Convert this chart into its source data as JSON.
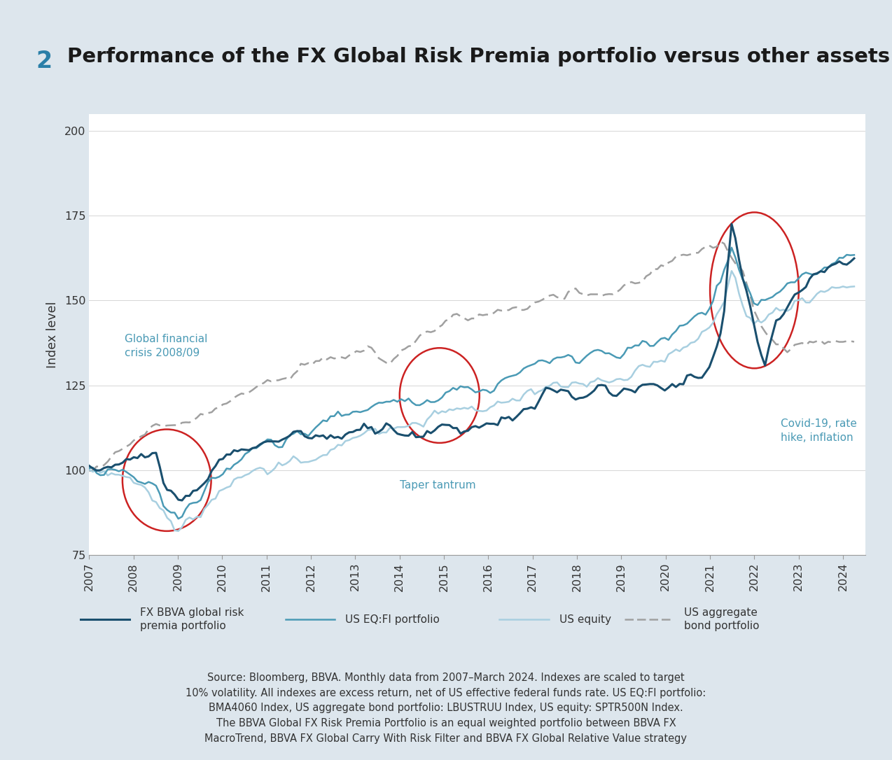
{
  "title_number": "2",
  "title_text": "Performance of the FX Global Risk Premia portfolio versus other assets",
  "title_number_color": "#2a7fa8",
  "title_text_color": "#1a1a1a",
  "ylabel": "Index level",
  "ylim": [
    75,
    205
  ],
  "yticks": [
    75,
    100,
    125,
    150,
    175,
    200
  ],
  "xlim": [
    2007,
    2024.5
  ],
  "xticks": [
    2007,
    2008,
    2009,
    2010,
    2011,
    2012,
    2013,
    2014,
    2015,
    2016,
    2017,
    2018,
    2019,
    2020,
    2021,
    2022,
    2023,
    2024
  ],
  "background_color": "#dde6ed",
  "plot_background": "#ffffff",
  "line_fx_color": "#1a4f6e",
  "line_eq_fi_color": "#4a9ab5",
  "line_equity_color": "#a8cfe0",
  "line_bond_color": "#a0a0a0",
  "annotation_color": "#4a9ab5",
  "circle_color": "#cc2222",
  "source_text": "Source: Bloomberg, BBVA. Monthly data from 2007–March 2024. Indexes are scaled to target\n10% volatility. All indexes are excess return, net of US effective federal funds rate. US EQ:FI portfolio:\nBMA4060 Index, US aggregate bond portfolio: LBUSTRUU Index, US equity: SPTR500N Index.\nThe BBVA Global FX Risk Premia Portfolio is an equal weighted portfolio between BBVA FX\nMacroTrend, BBVA FX Global Carry With Risk Filter and BBVA FX Global Relative Value strategy",
  "legend_entries": [
    {
      "label": "FX BBVA global risk\npremia portfolio",
      "color": "#1a4f6e",
      "linestyle": "solid",
      "lw": 2.2
    },
    {
      "label": "US EQ:FI portfolio",
      "color": "#4a9ab5",
      "linestyle": "solid",
      "lw": 1.8
    },
    {
      "label": "US equity",
      "color": "#a8cfe0",
      "linestyle": "solid",
      "lw": 1.8
    },
    {
      "label": "US aggregate\nbond portfolio",
      "color": "#a0a0a0",
      "linestyle": "dashed",
      "lw": 1.8
    }
  ]
}
